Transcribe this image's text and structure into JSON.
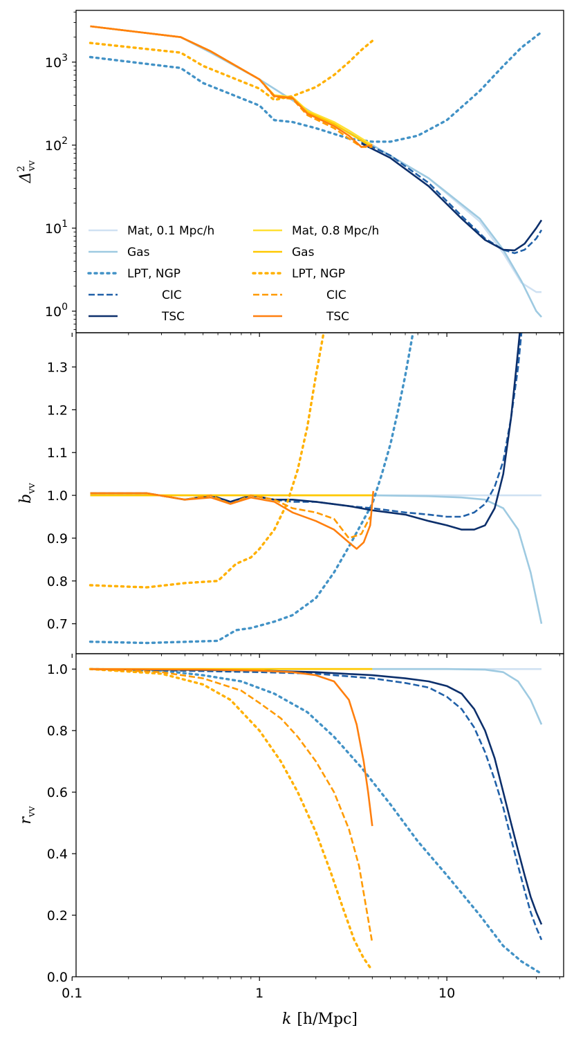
{
  "colors": {
    "mat01": "#cfe1f2",
    "gas01": "#9ecae1",
    "lpt01": "#4292c6",
    "cic01": "#2060a8",
    "tsc01": "#0c2f6b",
    "mat08": "#ffe033",
    "gas08": "#ffc800",
    "lpt08": "#ffb000",
    "cic08": "#ff9a00",
    "tsc08": "#ff7f0e"
  },
  "chart_data": [
    {
      "type": "line",
      "panel": "top",
      "ylabel": "Δ²_vv",
      "ylabel_main": "Δ",
      "ylabel_sup": "2",
      "ylabel_sub": "vv",
      "xscale": "log",
      "yscale": "log",
      "xlim": [
        0.105,
        42
      ],
      "ylim": [
        0.55,
        4200
      ],
      "yticks": [
        {
          "v": 1,
          "exp": "0"
        },
        {
          "v": 10,
          "exp": "1"
        },
        {
          "v": 100,
          "exp": "2"
        },
        {
          "v": 1000,
          "exp": "3"
        }
      ],
      "ytick_base": "10",
      "legend": {
        "placement": "lower-left",
        "col1": [
          "Mat, 0.1 Mpc/h",
          "Gas",
          "LPT, NGP",
          "CIC",
          "TSC"
        ],
        "col2": [
          "Mat, 0.8 Mpc/h",
          "Gas",
          "LPT, NGP",
          "CIC",
          "TSC"
        ]
      },
      "series": [
        {
          "name": "Mat 0.1",
          "color": "mat01",
          "dash": "solid",
          "x": [
            0.125,
            0.38,
            0.55,
            1.0,
            2.0,
            4.0,
            8.0,
            15,
            20,
            25,
            30,
            32
          ],
          "y": [
            2700,
            2000,
            1300,
            620,
            230,
            100,
            40,
            12,
            5,
            2.2,
            1.7,
            1.7
          ]
        },
        {
          "name": "Gas 0.1",
          "color": "gas01",
          "dash": "solid",
          "x": [
            0.125,
            0.38,
            0.55,
            1.0,
            2.0,
            4.0,
            8.0,
            15,
            20,
            25,
            30,
            32
          ],
          "y": [
            2700,
            2000,
            1300,
            620,
            230,
            100,
            40,
            13,
            5.5,
            2.3,
            1.0,
            0.85
          ]
        },
        {
          "name": "LPT NGP 0.1",
          "color": "lpt01",
          "dash": "dot",
          "x": [
            0.125,
            0.38,
            0.5,
            1.0,
            1.2,
            1.5,
            2.0,
            3.0,
            4.0,
            5.0,
            7.0,
            10,
            15,
            20,
            25,
            32
          ],
          "y": [
            1150,
            850,
            560,
            300,
            200,
            190,
            160,
            120,
            110,
            110,
            130,
            200,
            450,
            900,
            1500,
            2300
          ]
        },
        {
          "name": "CIC 0.1",
          "color": "cic01",
          "dash": "dash",
          "x": [
            3.5,
            5,
            8,
            12,
            16,
            20,
            23,
            26,
            30,
            32
          ],
          "y": [
            110,
            75,
            35,
            14,
            7.5,
            5.5,
            5.0,
            5.5,
            7.5,
            9.5
          ]
        },
        {
          "name": "TSC 0.1",
          "color": "tsc01",
          "dash": "solid",
          "x": [
            3.5,
            5,
            8,
            12,
            16,
            20,
            23,
            26,
            30,
            32
          ],
          "y": [
            105,
            70,
            32,
            13,
            7.2,
            5.5,
            5.4,
            6.5,
            10,
            12.5
          ]
        },
        {
          "name": "Mat 0.8",
          "color": "mat08",
          "dash": "solid",
          "x": [
            0.125,
            0.38,
            0.55,
            1.0,
            1.2,
            1.5,
            1.8,
            2.5,
            3.0,
            4.0
          ],
          "y": [
            2700,
            2000,
            1350,
            620,
            400,
            380,
            260,
            190,
            150,
            100
          ]
        },
        {
          "name": "Gas 0.8",
          "color": "gas08",
          "dash": "solid",
          "x": [
            0.125,
            0.38,
            0.55,
            1.0,
            1.2,
            1.5,
            1.8,
            2.5,
            3.0,
            4.0
          ],
          "y": [
            2700,
            2000,
            1350,
            620,
            390,
            370,
            250,
            180,
            140,
            95
          ]
        },
        {
          "name": "LPT NGP 0.8",
          "color": "lpt08",
          "dash": "dot",
          "x": [
            0.125,
            0.38,
            0.5,
            1.0,
            1.2,
            1.5,
            2.0,
            2.5,
            3.0,
            3.5,
            4.0
          ],
          "y": [
            1700,
            1300,
            900,
            480,
            350,
            390,
            500,
            700,
            1000,
            1400,
            1800
          ]
        },
        {
          "name": "CIC 0.8",
          "color": "cic08",
          "dash": "dash",
          "x": [
            0.125,
            0.38,
            0.55,
            1.0,
            1.2,
            1.5,
            1.8,
            2.5,
            3.0,
            3.5,
            4.0
          ],
          "y": [
            2700,
            2000,
            1350,
            620,
            380,
            360,
            230,
            160,
            120,
            95,
            95
          ]
        },
        {
          "name": "TSC 0.8",
          "color": "tsc08",
          "dash": "solid",
          "x": [
            0.125,
            0.38,
            0.55,
            1.0,
            1.2,
            1.5,
            1.8,
            2.5,
            3.0,
            3.5,
            4.0
          ],
          "y": [
            2700,
            2000,
            1350,
            620,
            390,
            370,
            240,
            170,
            130,
            95,
            100
          ]
        }
      ]
    },
    {
      "type": "line",
      "panel": "middle",
      "ylabel": "b_vv",
      "ylabel_main": "b",
      "ylabel_sub": "vv",
      "xscale": "log",
      "yscale": "linear",
      "xlim": [
        0.105,
        42
      ],
      "ylim": [
        0.63,
        1.38
      ],
      "yticks": [
        "0.7",
        "0.8",
        "0.9",
        "1.0",
        "1.1",
        "1.2",
        "1.3"
      ],
      "series": [
        {
          "name": "Mat 0.1",
          "color": "mat01",
          "dash": "solid",
          "x": [
            0.125,
            10,
            15,
            32
          ],
          "y": [
            1.0,
            1.0,
            1.0,
            1.0
          ]
        },
        {
          "name": "Gas 0.1",
          "color": "gas01",
          "dash": "solid",
          "x": [
            4,
            8,
            12,
            16,
            20,
            24,
            28,
            32
          ],
          "y": [
            1.0,
            0.998,
            0.995,
            0.99,
            0.97,
            0.92,
            0.82,
            0.7
          ]
        },
        {
          "name": "LPT NGP 0.1",
          "color": "lpt01",
          "dash": "dot",
          "x": [
            0.125,
            0.25,
            0.6,
            0.75,
            0.9,
            1.2,
            1.5,
            2.0,
            2.5,
            3.0,
            4.0,
            4.5,
            5.0,
            5.5,
            6.0,
            6.6
          ],
          "y": [
            0.658,
            0.655,
            0.66,
            0.685,
            0.69,
            0.705,
            0.72,
            0.76,
            0.82,
            0.88,
            0.98,
            1.05,
            1.12,
            1.2,
            1.28,
            1.38
          ]
        },
        {
          "name": "CIC 0.1",
          "color": "cic01",
          "dash": "dash",
          "x": [
            0.125,
            0.25,
            0.4,
            0.55,
            0.7,
            0.9,
            1.2,
            1.5,
            2.0,
            3.0,
            4.0,
            6.0,
            8.0,
            10,
            12,
            14,
            16,
            18,
            20,
            22,
            24,
            25
          ],
          "y": [
            1.005,
            1.005,
            0.99,
            1.0,
            0.985,
            1.0,
            0.99,
            0.985,
            0.985,
            0.975,
            0.97,
            0.96,
            0.955,
            0.95,
            0.95,
            0.96,
            0.98,
            1.02,
            1.08,
            1.18,
            1.3,
            1.38
          ]
        },
        {
          "name": "TSC 0.1",
          "color": "tsc01",
          "dash": "solid",
          "x": [
            0.125,
            0.25,
            0.4,
            0.55,
            0.7,
            0.9,
            1.2,
            1.5,
            2.0,
            3.0,
            4.0,
            6.0,
            8.0,
            10,
            12,
            14,
            16,
            18,
            20,
            22,
            23.5,
            24.5
          ],
          "y": [
            1.005,
            1.005,
            0.99,
            1.0,
            0.985,
            1.0,
            0.99,
            0.99,
            0.985,
            0.975,
            0.965,
            0.955,
            0.94,
            0.93,
            0.92,
            0.92,
            0.93,
            0.97,
            1.05,
            1.18,
            1.3,
            1.38
          ]
        },
        {
          "name": "Mat 0.8",
          "color": "mat08",
          "dash": "solid",
          "x": [
            0.125,
            4.0
          ],
          "y": [
            1.0,
            1.0
          ]
        },
        {
          "name": "Gas 0.8",
          "color": "gas08",
          "dash": "solid",
          "x": [
            0.125,
            4.0
          ],
          "y": [
            1.0,
            1.0
          ]
        },
        {
          "name": "LPT NGP 0.8",
          "color": "lpt08",
          "dash": "dot",
          "x": [
            0.125,
            0.25,
            0.4,
            0.6,
            0.75,
            0.9,
            1.0,
            1.2,
            1.4,
            1.6,
            1.8,
            2.0,
            2.2
          ],
          "y": [
            0.79,
            0.785,
            0.795,
            0.8,
            0.84,
            0.855,
            0.875,
            0.92,
            0.98,
            1.06,
            1.16,
            1.28,
            1.38
          ]
        },
        {
          "name": "CIC 0.8",
          "color": "cic08",
          "dash": "dash",
          "x": [
            0.125,
            0.25,
            0.4,
            0.55,
            0.7,
            0.9,
            1.2,
            1.5,
            2.0,
            2.5,
            3.0,
            3.5,
            3.9
          ],
          "y": [
            1.005,
            1.005,
            0.99,
            1.0,
            0.98,
            1.0,
            0.99,
            0.97,
            0.96,
            0.945,
            0.9,
            0.91,
            0.95
          ]
        },
        {
          "name": "TSC 0.8",
          "color": "tsc08",
          "dash": "solid",
          "x": [
            0.125,
            0.25,
            0.4,
            0.55,
            0.7,
            0.9,
            1.2,
            1.5,
            2.0,
            2.5,
            3.0,
            3.3,
            3.6,
            3.9,
            4.05
          ],
          "y": [
            1.005,
            1.005,
            0.99,
            0.995,
            0.98,
            0.995,
            0.985,
            0.96,
            0.94,
            0.92,
            0.89,
            0.875,
            0.89,
            0.93,
            1.01
          ]
        }
      ]
    },
    {
      "type": "line",
      "panel": "bottom",
      "ylabel": "r_vv",
      "ylabel_main": "r",
      "ylabel_sub": "vv",
      "xlabel": "k [h/Mpc]",
      "xlabel_main": "k",
      "xlabel_unit": "[h/Mpc]",
      "xscale": "log",
      "yscale": "linear",
      "xlim": [
        0.105,
        42
      ],
      "ylim": [
        0.0,
        1.05
      ],
      "yticks": [
        "0.0",
        "0.2",
        "0.4",
        "0.6",
        "0.8",
        "1.0"
      ],
      "xticks": [
        {
          "v": 0.1,
          "label": "0.1"
        },
        {
          "v": 1,
          "label": "1"
        },
        {
          "v": 10,
          "label": "10"
        }
      ],
      "series": [
        {
          "name": "Mat 0.1",
          "color": "mat01",
          "dash": "solid",
          "x": [
            0.125,
            32
          ],
          "y": [
            1.0,
            1.0
          ]
        },
        {
          "name": "Gas 0.1",
          "color": "gas01",
          "dash": "solid",
          "x": [
            4,
            10,
            16,
            20,
            24,
            28,
            32
          ],
          "y": [
            1.0,
            1.0,
            0.998,
            0.99,
            0.96,
            0.9,
            0.82
          ]
        },
        {
          "name": "LPT NGP 0.1",
          "color": "lpt01",
          "dash": "dot",
          "x": [
            0.125,
            0.3,
            0.5,
            0.8,
            1.2,
            1.8,
            2.5,
            3.5,
            5.0,
            7.0,
            10,
            15,
            20,
            25,
            32
          ],
          "y": [
            1.0,
            0.995,
            0.98,
            0.96,
            0.92,
            0.86,
            0.78,
            0.68,
            0.56,
            0.44,
            0.33,
            0.2,
            0.1,
            0.05,
            0.01
          ]
        },
        {
          "name": "CIC 0.1",
          "color": "cic01",
          "dash": "dash",
          "x": [
            0.125,
            1.0,
            2.0,
            4.0,
            6.0,
            8.0,
            10,
            12,
            14,
            16,
            18,
            20,
            22,
            24,
            26,
            28,
            30,
            32
          ],
          "y": [
            1.0,
            0.99,
            0.985,
            0.97,
            0.955,
            0.94,
            0.91,
            0.87,
            0.81,
            0.73,
            0.64,
            0.55,
            0.45,
            0.36,
            0.28,
            0.21,
            0.16,
            0.12
          ]
        },
        {
          "name": "TSC 0.1",
          "color": "tsc01",
          "dash": "solid",
          "x": [
            0.125,
            1.0,
            2.0,
            4.0,
            6.0,
            8.0,
            10,
            12,
            14,
            16,
            18,
            20,
            22,
            24,
            26,
            28,
            30,
            32
          ],
          "y": [
            1.0,
            0.995,
            0.99,
            0.98,
            0.97,
            0.96,
            0.945,
            0.92,
            0.87,
            0.8,
            0.71,
            0.6,
            0.5,
            0.41,
            0.33,
            0.26,
            0.21,
            0.17
          ]
        },
        {
          "name": "Mat 0.8",
          "color": "mat08",
          "dash": "solid",
          "x": [
            0.125,
            4.0
          ],
          "y": [
            1.0,
            1.0
          ]
        },
        {
          "name": "Gas 0.8",
          "color": "gas08",
          "dash": "solid",
          "x": [
            0.125,
            4.0
          ],
          "y": [
            1.0,
            1.0
          ]
        },
        {
          "name": "LPT NGP 0.8",
          "color": "lpt08",
          "dash": "dot",
          "x": [
            0.125,
            0.3,
            0.5,
            0.7,
            1.0,
            1.3,
            1.6,
            2.0,
            2.4,
            2.8,
            3.2,
            3.6,
            3.9
          ],
          "y": [
            1.0,
            0.985,
            0.95,
            0.9,
            0.8,
            0.7,
            0.6,
            0.47,
            0.34,
            0.22,
            0.12,
            0.06,
            0.03
          ]
        },
        {
          "name": "CIC 0.8",
          "color": "cic08",
          "dash": "dash",
          "x": [
            0.125,
            0.3,
            0.5,
            0.8,
            1.0,
            1.3,
            1.6,
            2.0,
            2.5,
            3.0,
            3.4,
            3.7,
            4.0
          ],
          "y": [
            1.0,
            0.99,
            0.97,
            0.93,
            0.89,
            0.84,
            0.78,
            0.7,
            0.6,
            0.48,
            0.36,
            0.23,
            0.11
          ]
        },
        {
          "name": "TSC 0.8",
          "color": "tsc08",
          "dash": "solid",
          "x": [
            0.125,
            0.5,
            1.0,
            1.5,
            2.0,
            2.5,
            3.0,
            3.3,
            3.6,
            3.8,
            4.0
          ],
          "y": [
            1.0,
            0.998,
            0.995,
            0.99,
            0.98,
            0.96,
            0.9,
            0.82,
            0.7,
            0.6,
            0.49
          ]
        }
      ]
    }
  ]
}
